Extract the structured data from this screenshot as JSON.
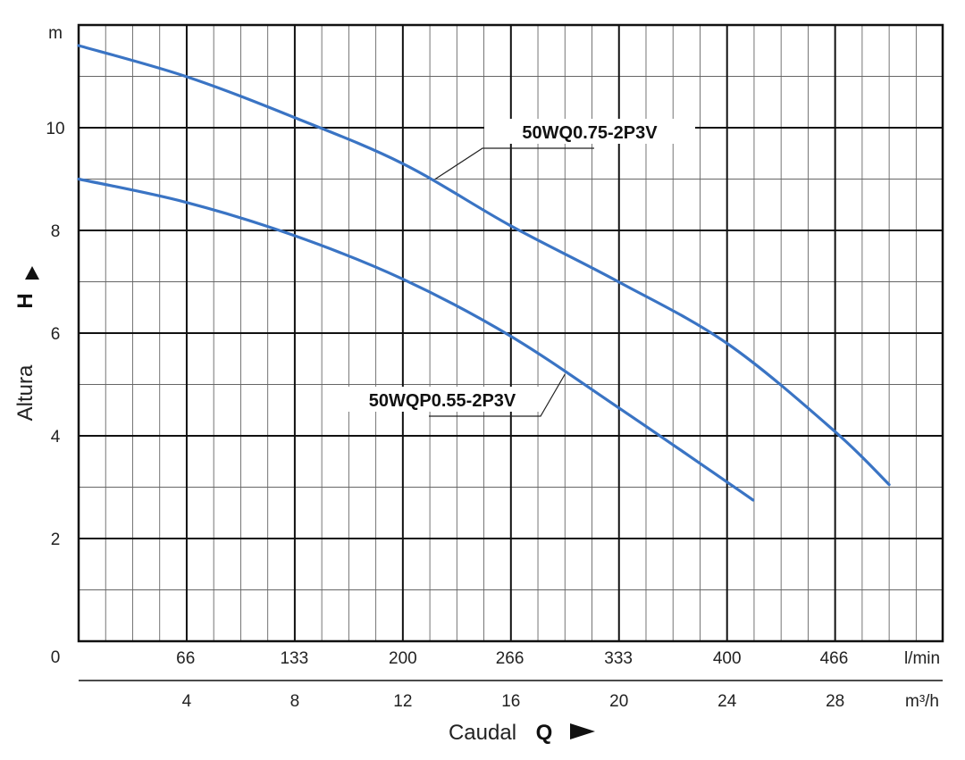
{
  "chart_data": {
    "type": "line",
    "y_unit": "m",
    "ylabel": "Altura",
    "ylabel_symbol": "H",
    "xlabel": "Caudal",
    "xlabel_symbol": "Q",
    "x_unit_primary": "l/min",
    "x_unit_secondary": "m³/h",
    "x_ticks_primary": [
      {
        "label": "0",
        "value": 0
      },
      {
        "label": "66",
        "value": 66
      },
      {
        "label": "133",
        "value": 133
      },
      {
        "label": "200",
        "value": 200
      },
      {
        "label": "266",
        "value": 266
      },
      {
        "label": "333",
        "value": 333
      },
      {
        "label": "400",
        "value": 400
      },
      {
        "label": "466",
        "value": 466
      }
    ],
    "x_ticks_secondary": [
      {
        "label": "4",
        "value": 4
      },
      {
        "label": "8",
        "value": 8
      },
      {
        "label": "12",
        "value": 12
      },
      {
        "label": "16",
        "value": 16
      },
      {
        "label": "20",
        "value": 20
      },
      {
        "label": "24",
        "value": 24
      },
      {
        "label": "28",
        "value": 28
      }
    ],
    "y_ticks": [
      {
        "label": "2",
        "value": 2
      },
      {
        "label": "4",
        "value": 4
      },
      {
        "label": "6",
        "value": 6
      },
      {
        "label": "8",
        "value": 8
      },
      {
        "label": "10",
        "value": 10
      }
    ],
    "xlim": [
      0,
      533
    ],
    "ylim": [
      0,
      12
    ],
    "grid": true,
    "series": [
      {
        "name": "50WQ0.75-2P3V",
        "color": "#3a74c4",
        "x": [
          0,
          66,
          133,
          200,
          266,
          333,
          400,
          466,
          500
        ],
        "y": [
          11.6,
          11.0,
          10.2,
          9.3,
          8.1,
          7.0,
          5.8,
          4.1,
          3.05
        ]
      },
      {
        "name": "50WQP0.55-2P3V",
        "color": "#3a74c4",
        "x": [
          0,
          66,
          133,
          200,
          266,
          333,
          400,
          416
        ],
        "y": [
          9.0,
          8.55,
          7.9,
          7.05,
          5.95,
          4.55,
          3.1,
          2.75
        ]
      }
    ]
  }
}
